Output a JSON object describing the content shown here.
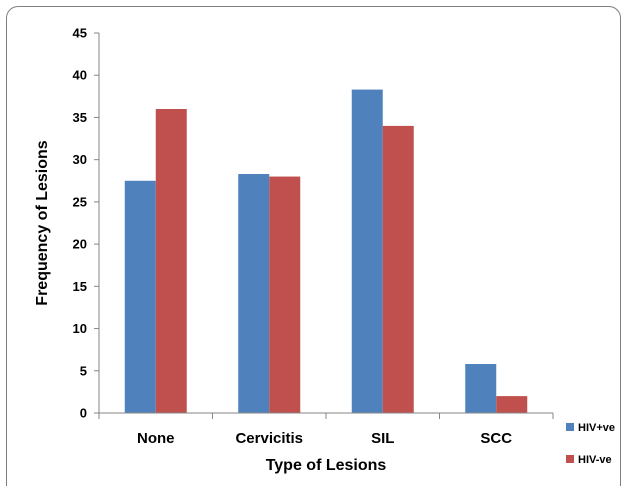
{
  "chart_data": {
    "type": "bar",
    "title": "",
    "xlabel": "Type of Lesions",
    "ylabel": "Frequency of Lesions",
    "categories": [
      "None",
      "Cervicitis",
      "SIL",
      "SCC"
    ],
    "series": [
      {
        "name": "HIV+ve",
        "values": [
          27.5,
          28.3,
          38.3,
          5.8
        ],
        "color": "#4f81bd"
      },
      {
        "name": "HIV-ve",
        "values": [
          36.0,
          28.0,
          34.0,
          2.0
        ],
        "color": "#c0504d"
      }
    ],
    "ylim": [
      0,
      45
    ],
    "yticks": [
      0,
      5,
      10,
      15,
      20,
      25,
      30,
      35,
      40,
      45
    ],
    "grid": false,
    "legend_position": "right"
  }
}
